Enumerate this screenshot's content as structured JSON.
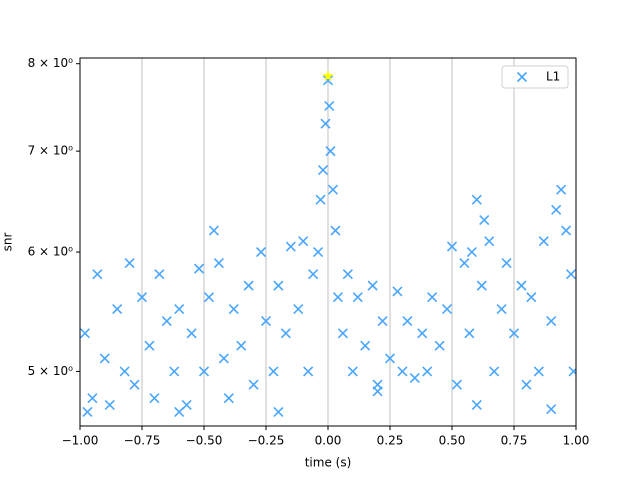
{
  "chart_data": {
    "type": "scatter",
    "x_label": "time (s)",
    "y_label": "snr",
    "xlim": [
      -1,
      1
    ],
    "ylim": [
      4.6,
      8.07
    ],
    "log_y": true,
    "grid": "x",
    "legend": "upper right",
    "xticks": [
      {
        "value": -1,
        "label": "−1.00"
      },
      {
        "value": -0.75,
        "label": "−0.75"
      },
      {
        "value": -0.5,
        "label": "−0.50"
      },
      {
        "value": -0.25,
        "label": "−0.25"
      },
      {
        "value": 0,
        "label": "0.00"
      },
      {
        "value": 0.25,
        "label": "0.25"
      },
      {
        "value": 0.5,
        "label": "0.50"
      },
      {
        "value": 0.75,
        "label": "0.75"
      },
      {
        "value": 1,
        "label": "1.00"
      }
    ],
    "yticks": [
      {
        "value": 5,
        "label": "5 × 10⁰"
      },
      {
        "value": 6,
        "label": "6 × 10⁰"
      },
      {
        "value": 7,
        "label": "7 × 10⁰"
      },
      {
        "value": 8,
        "label": "8 × 10⁰"
      }
    ],
    "series": [
      {
        "name": "L1",
        "color": "#4aa6ff",
        "x": [
          -0.98,
          -0.95,
          -0.93,
          -0.9,
          -0.88,
          -0.85,
          -0.82,
          -0.8,
          -0.78,
          -0.75,
          -0.72,
          -0.7,
          -0.68,
          -0.65,
          -0.62,
          -0.6,
          -0.57,
          -0.55,
          -0.52,
          -0.5,
          -0.48,
          -0.46,
          -0.44,
          -0.42,
          -0.4,
          -0.38,
          -0.35,
          -0.32,
          -0.3,
          -0.27,
          -0.25,
          -0.22,
          -0.2,
          -0.17,
          -0.15,
          -0.12,
          -0.1,
          -0.08,
          -0.06,
          -0.04,
          -0.03,
          -0.02,
          -0.01,
          0.0,
          0.005,
          0.01,
          0.02,
          0.03,
          0.04,
          0.06,
          0.08,
          0.1,
          0.12,
          0.15,
          0.18,
          0.2,
          0.22,
          0.25,
          0.28,
          0.3,
          0.32,
          0.35,
          0.38,
          0.4,
          0.42,
          0.45,
          0.48,
          0.5,
          0.52,
          0.55,
          0.57,
          0.58,
          0.6,
          0.62,
          0.63,
          0.65,
          0.67,
          0.7,
          0.72,
          0.75,
          0.78,
          0.8,
          0.82,
          0.85,
          0.87,
          0.9,
          0.92,
          0.94,
          0.96,
          0.98,
          0.99,
          -0.97,
          -0.6,
          -0.2,
          0.2,
          0.6,
          0.9
        ],
        "values": [
          5.3,
          4.8,
          5.8,
          5.1,
          4.75,
          5.5,
          5.0,
          5.9,
          4.9,
          5.6,
          5.2,
          4.8,
          5.8,
          5.4,
          5.0,
          5.5,
          4.75,
          5.3,
          5.85,
          5.0,
          5.6,
          6.2,
          5.9,
          5.1,
          4.8,
          5.5,
          5.2,
          5.7,
          4.9,
          6.0,
          5.4,
          5.0,
          5.7,
          5.3,
          6.05,
          5.5,
          6.1,
          5.0,
          5.8,
          6.0,
          6.5,
          6.8,
          7.3,
          7.8,
          7.5,
          7.0,
          6.6,
          6.2,
          5.6,
          5.3,
          5.8,
          5.0,
          5.6,
          5.2,
          5.7,
          4.9,
          5.4,
          5.1,
          5.65,
          5.0,
          5.4,
          4.95,
          5.3,
          5.0,
          5.6,
          5.2,
          5.5,
          6.05,
          4.9,
          5.9,
          5.3,
          6.0,
          6.5,
          5.7,
          6.3,
          6.1,
          5.0,
          5.5,
          5.9,
          5.3,
          5.7,
          4.9,
          5.6,
          5.0,
          6.1,
          5.4,
          6.4,
          6.6,
          6.2,
          5.8,
          5.0,
          4.7,
          4.7,
          4.7,
          4.85,
          4.75,
          4.72
        ]
      },
      {
        "color": "#ffff00",
        "marker": "star",
        "x": [
          0.0
        ],
        "values": [
          7.85
        ]
      }
    ]
  }
}
